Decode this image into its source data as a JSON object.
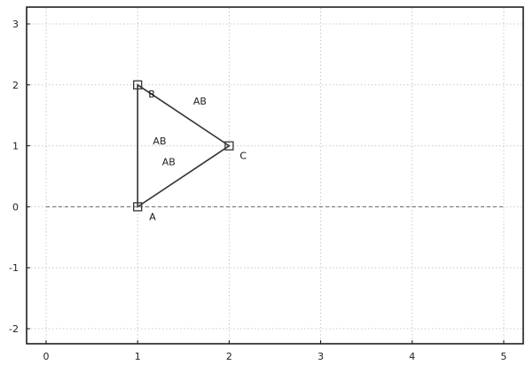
{
  "chart_data": {
    "type": "scatter",
    "title": "",
    "xlabel": "",
    "ylabel": "",
    "xlim": [
      0,
      5
    ],
    "ylim": [
      -2,
      3
    ],
    "x_ticks": [
      0,
      1,
      2,
      3,
      4,
      5
    ],
    "y_ticks": [
      -2,
      -1,
      0,
      1,
      2,
      3
    ],
    "x_tick_labels": [
      "0",
      "1",
      "2",
      "3",
      "4",
      "5"
    ],
    "y_tick_labels": [
      "-2",
      "-1",
      "0",
      "1",
      "2",
      "3"
    ],
    "grid": true,
    "reference_line_y": 0,
    "points": [
      {
        "label": "A",
        "x": 1,
        "y": 0
      },
      {
        "label": "B",
        "x": 1,
        "y": 2
      },
      {
        "label": "C",
        "x": 2,
        "y": 1
      }
    ],
    "polygon": [
      "A",
      "B",
      "C"
    ],
    "edge_labels": [
      {
        "text": "AB",
        "x": 1.68,
        "y": 1.68
      },
      {
        "text": "AB",
        "x": 1.24,
        "y": 1.02
      },
      {
        "text": "AB",
        "x": 1.34,
        "y": 0.68
      }
    ],
    "colors": {
      "frame": "#111111",
      "grid": "#c8c8c8",
      "axis_dashed": "#666666",
      "triangle": "#333333",
      "marker": "#333333"
    }
  }
}
